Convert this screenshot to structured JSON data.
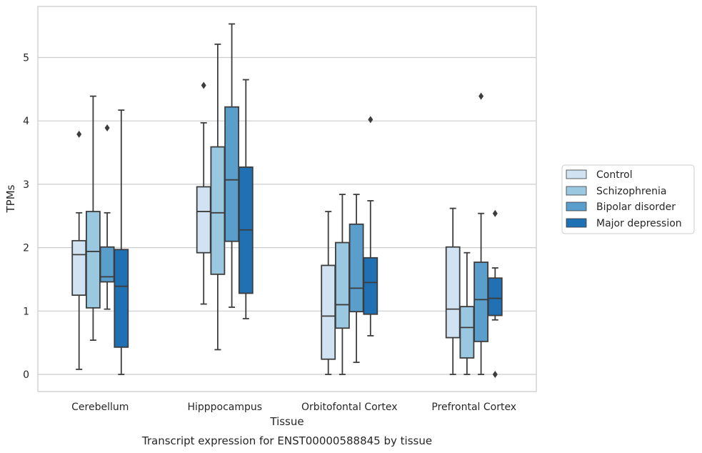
{
  "chart_data": {
    "type": "box",
    "xlabel": "Tissue",
    "ylabel": "TPMs",
    "caption": "Transcript expression for ENST00000588845 by tissue",
    "ylim": [
      -0.27,
      5.8
    ],
    "yticks": [
      "0",
      "1",
      "2",
      "3",
      "4",
      "5"
    ],
    "grid": "horizontal",
    "legend_position": "right",
    "categories": [
      "Cerebellum",
      "Hipppocampus",
      "Orbitofontal Cortex",
      "Prefrontal Cortex"
    ],
    "series": [
      {
        "name": "Control",
        "color": "#d1e2f2",
        "boxes": [
          {
            "whisker_low": 0.08,
            "q1": 1.25,
            "median": 1.89,
            "q3": 2.11,
            "whisker_high": 2.55,
            "outliers": [
              3.79
            ]
          },
          {
            "whisker_low": 1.11,
            "q1": 1.92,
            "median": 2.57,
            "q3": 2.96,
            "whisker_high": 3.97,
            "outliers": [
              4.56
            ]
          },
          {
            "whisker_low": 0.0,
            "q1": 0.24,
            "median": 0.92,
            "q3": 1.72,
            "whisker_high": 2.57,
            "outliers": []
          },
          {
            "whisker_low": 0.0,
            "q1": 0.58,
            "median": 1.03,
            "q3": 2.01,
            "whisker_high": 2.62,
            "outliers": []
          }
        ]
      },
      {
        "name": "Schizophrenia",
        "color": "#9ac8e0",
        "boxes": [
          {
            "whisker_low": 0.54,
            "q1": 1.05,
            "median": 1.94,
            "q3": 2.57,
            "whisker_high": 4.39,
            "outliers": []
          },
          {
            "whisker_low": 0.39,
            "q1": 1.58,
            "median": 2.55,
            "q3": 3.59,
            "whisker_high": 5.21,
            "outliers": []
          },
          {
            "whisker_low": 0.0,
            "q1": 0.73,
            "median": 1.1,
            "q3": 2.08,
            "whisker_high": 2.84,
            "outliers": []
          },
          {
            "whisker_low": 0.0,
            "q1": 0.26,
            "median": 0.74,
            "q3": 1.07,
            "whisker_high": 1.92,
            "outliers": []
          }
        ]
      },
      {
        "name": "Bipolar disorder",
        "color": "#5a9ecc",
        "boxes": [
          {
            "whisker_low": 1.03,
            "q1": 1.46,
            "median": 1.54,
            "q3": 2.01,
            "whisker_high": 2.55,
            "outliers": [
              3.89
            ]
          },
          {
            "whisker_low": 1.06,
            "q1": 2.1,
            "median": 3.07,
            "q3": 4.22,
            "whisker_high": 5.53,
            "outliers": []
          },
          {
            "whisker_low": 0.19,
            "q1": 0.99,
            "median": 1.36,
            "q3": 2.37,
            "whisker_high": 2.84,
            "outliers": []
          },
          {
            "whisker_low": 0.0,
            "q1": 0.52,
            "median": 1.18,
            "q3": 1.77,
            "whisker_high": 2.54,
            "outliers": [
              4.39
            ]
          }
        ]
      },
      {
        "name": "Major depression",
        "color": "#2070b4",
        "boxes": [
          {
            "whisker_low": 0.0,
            "q1": 0.43,
            "median": 1.39,
            "q3": 1.97,
            "whisker_high": 4.17,
            "outliers": []
          },
          {
            "whisker_low": 0.88,
            "q1": 1.28,
            "median": 2.28,
            "q3": 3.27,
            "whisker_high": 4.65,
            "outliers": []
          },
          {
            "whisker_low": 0.61,
            "q1": 0.95,
            "median": 1.45,
            "q3": 1.84,
            "whisker_high": 2.74,
            "outliers": [
              4.02
            ]
          },
          {
            "whisker_low": 0.86,
            "q1": 0.93,
            "median": 1.2,
            "q3": 1.52,
            "whisker_high": 1.68,
            "outliers": [
              2.54,
              0.0
            ]
          }
        ]
      }
    ]
  }
}
